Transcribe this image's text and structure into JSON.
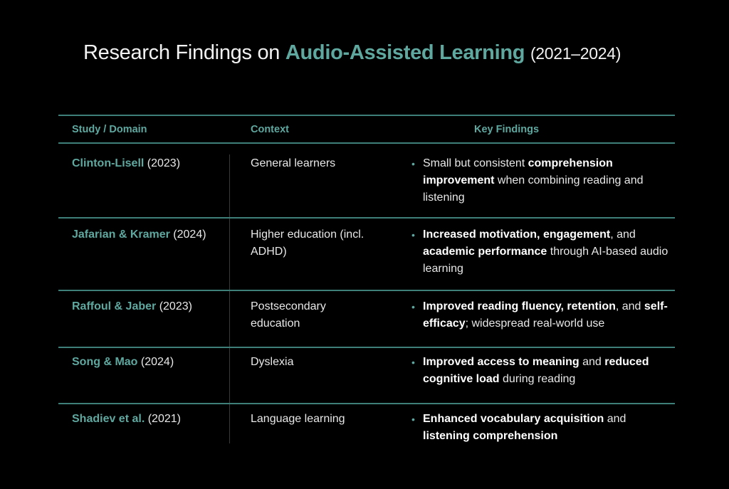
{
  "title": {
    "prefix": "Research Findings on ",
    "accent": "Audio-Assisted Learning",
    "years": "(2021–2024)"
  },
  "colors": {
    "accent": "#5fa8a0",
    "rule": "#3f7f7a",
    "background": "#000000"
  },
  "table": {
    "headers": {
      "study": "Study / Domain",
      "context": "Context",
      "findings": "Key Findings"
    },
    "bullet_icon": "•",
    "rows": [
      {
        "name": "Clinton-Lisell",
        "year": "(2023)",
        "context": "General learners",
        "findings": [
          {
            "text": "Small but consistent ",
            "bold": false
          },
          {
            "text": "comprehension improvement",
            "bold": true
          },
          {
            "text": " when combining reading and listening",
            "bold": false
          }
        ]
      },
      {
        "name": "Jafarian & Kramer",
        "year": "(2024)",
        "context": "Higher education (incl. ADHD)",
        "findings": [
          {
            "text": "Increased motivation, engagement",
            "bold": true
          },
          {
            "text": ", and ",
            "bold": false
          },
          {
            "text": "academic performance",
            "bold": true
          },
          {
            "text": " through AI-based audio learning",
            "bold": false
          }
        ]
      },
      {
        "name": "Raffoul & Jaber",
        "year": "(2023)",
        "context": "Postsecondary education",
        "findings": [
          {
            "text": "Improved reading fluency, retention",
            "bold": true
          },
          {
            "text": ", and ",
            "bold": false
          },
          {
            "text": "self-efficacy",
            "bold": true
          },
          {
            "text": "; widespread real-world use",
            "bold": false
          }
        ]
      },
      {
        "name": "Song & Mao",
        "year": "(2024)",
        "context": "Dyslexia",
        "findings": [
          {
            "text": "Improved access to meaning",
            "bold": true
          },
          {
            "text": " and ",
            "bold": false
          },
          {
            "text": "reduced cognitive load",
            "bold": true
          },
          {
            "text": " during reading",
            "bold": false
          }
        ]
      },
      {
        "name": "Shadiev et al.",
        "year": "(2021)",
        "context": "Language learning",
        "findings": [
          {
            "text": "Enhanced vocabulary acquisition",
            "bold": true
          },
          {
            "text": " and ",
            "bold": false
          },
          {
            "text": "listening comprehension",
            "bold": true
          }
        ]
      }
    ]
  }
}
